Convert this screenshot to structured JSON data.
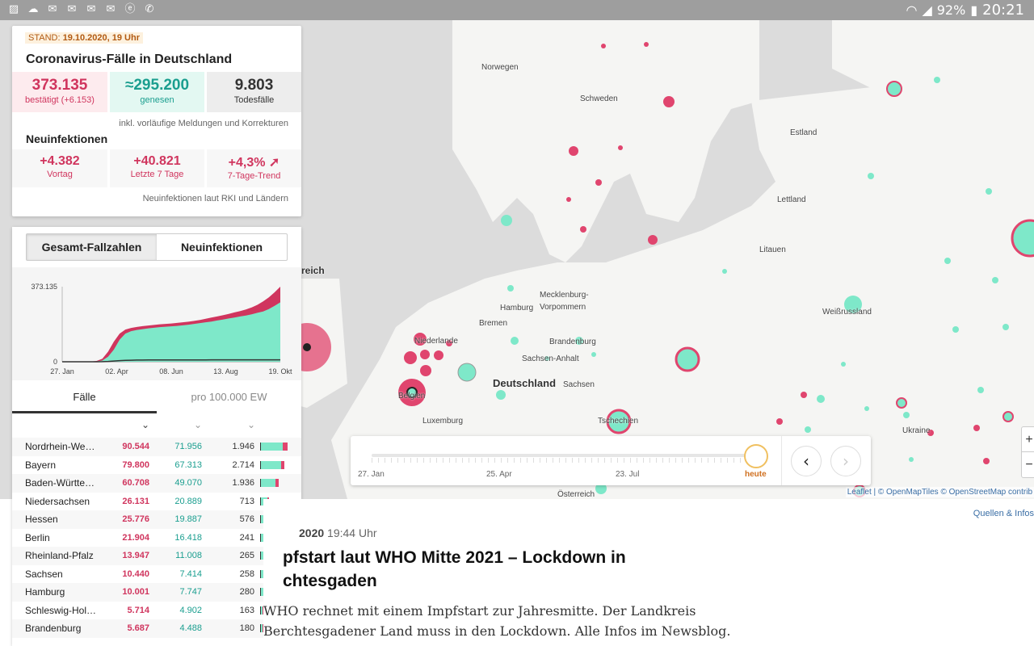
{
  "statusbar": {
    "left_icons": [
      "image-icon",
      "cloud-icon",
      "mail-icon",
      "mail-icon",
      "mail-icon",
      "mail-icon",
      "e-icon",
      "phone-icon"
    ],
    "battery": "92%",
    "time": "20:21"
  },
  "map": {
    "labels": [
      {
        "text": "Norwegen"
      },
      {
        "text": "Schweden"
      },
      {
        "text": "Estland"
      },
      {
        "text": "Lettland"
      },
      {
        "text": "Litauen"
      },
      {
        "text": "Weißrussland"
      },
      {
        "text": "Mecklenburg-"
      },
      {
        "text": "Vorpommern"
      },
      {
        "text": "Hamburg"
      },
      {
        "text": "Bremen"
      },
      {
        "text": "Brandenburg"
      },
      {
        "text": "Sachsen-Anhalt"
      },
      {
        "text": "Deutschland"
      },
      {
        "text": "Sachsen"
      },
      {
        "text": "Niederlande"
      },
      {
        "text": "Belgien"
      },
      {
        "text": "Luxemburg"
      },
      {
        "text": "Tschechien"
      },
      {
        "text": "Ukraine"
      },
      {
        "text": "Österreich"
      },
      {
        "text": "reich"
      }
    ],
    "attribution": "Leaflet | © OpenMapTiles © OpenStreetMap contrib",
    "zoom_in": "+",
    "zoom_out": "−"
  },
  "timeline": {
    "labels": [
      "27. Jan",
      "25. Apr",
      "23. Jul",
      "heute"
    ],
    "prev": "‹",
    "next": "›"
  },
  "summary": {
    "stand_prefix": "STAND:",
    "stand_date": "19.10.2020, 19 Uhr",
    "title": "Coronavirus-Fälle in Deutschland",
    "confirmed": "373.135",
    "confirmed_label": "bestätigt (+6.153)",
    "recovered": "≈295.200",
    "recovered_label": "genesen",
    "deaths": "9.803",
    "deaths_label": "Todesfälle",
    "note": "inkl. vorläufige Meldungen und Korrekturen",
    "new_title": "Neuinfektionen",
    "new_prev": "+4.382",
    "new_prev_label": "Vortag",
    "new_7d": "+40.821",
    "new_7d_label": "Letzte 7 Tage",
    "trend": "+4,3% ➚",
    "trend_label": "7-Tage-Trend",
    "new_note": "Neuinfektionen laut RKI und Ländern"
  },
  "panel": {
    "seg_total": "Gesamt-Fallzahlen",
    "seg_new": "Neuinfektionen",
    "tab_cases": "Fälle",
    "tab_per100k": "pro 100.000 EW",
    "sort_icon": "⌄"
  },
  "chart_data": {
    "type": "area",
    "title": "",
    "xlabel": "",
    "ylabel": "",
    "x_ticks": [
      "27. Jan",
      "02. Apr",
      "08. Jun",
      "13. Aug",
      "19. Okt"
    ],
    "y_ticks": [
      "0",
      "373.135"
    ],
    "ylim": [
      0,
      373135
    ],
    "x": [
      0,
      1,
      2,
      3,
      4,
      5,
      6,
      7,
      8,
      9,
      10,
      11,
      12,
      13,
      14,
      15,
      16,
      17,
      18,
      19,
      20,
      21,
      22,
      23,
      24,
      25,
      26,
      27,
      28,
      29,
      30,
      31,
      32,
      33,
      34,
      35,
      36,
      37,
      38
    ],
    "series": [
      {
        "color": "#d0355e",
        "values": [
          0,
          0,
          0,
          0,
          0,
          1000,
          4000,
          15000,
          50000,
          100000,
          140000,
          160000,
          168000,
          173000,
          177000,
          180000,
          183000,
          186000,
          188000,
          190000,
          193000,
          196000,
          199000,
          203000,
          208000,
          214000,
          220000,
          225000,
          231000,
          238000,
          245000,
          252000,
          260000,
          270000,
          283000,
          300000,
          320000,
          345000,
          373135
        ]
      },
      {
        "color": "#7ee8c9",
        "values": [
          0,
          0,
          0,
          0,
          0,
          300,
          1500,
          6000,
          25000,
          60000,
          110000,
          140000,
          152000,
          158000,
          162000,
          166000,
          169000,
          172000,
          174000,
          176000,
          178000,
          181000,
          184000,
          188000,
          192000,
          196000,
          200000,
          205000,
          210000,
          215000,
          220000,
          225000,
          230000,
          236000,
          243000,
          250000,
          262000,
          278000,
          295200
        ]
      },
      {
        "color": "#333333",
        "values": [
          0,
          0,
          0,
          0,
          0,
          30,
          100,
          400,
          1500,
          3500,
          5500,
          7000,
          7800,
          8300,
          8600,
          8800,
          8900,
          9000,
          9050,
          9100,
          9150,
          9200,
          9250,
          9300,
          9350,
          9400,
          9450,
          9500,
          9520,
          9550,
          9580,
          9600,
          9630,
          9660,
          9690,
          9720,
          9750,
          9780,
          9803
        ]
      }
    ]
  },
  "table": {
    "rows": [
      {
        "name": "Nordrhein-We…",
        "cases": "90.544",
        "recovered": "71.956",
        "deaths": "1.946",
        "frac_g": 0.79,
        "frac_p": 0.19,
        "frac_total": 1.0
      },
      {
        "name": "Bayern",
        "cases": "79.800",
        "recovered": "67.313",
        "deaths": "2.714",
        "frac_g": 0.84,
        "frac_p": 0.12,
        "frac_total": 0.88
      },
      {
        "name": "Baden-Württe…",
        "cases": "60.708",
        "recovered": "49.070",
        "deaths": "1.936",
        "frac_g": 0.81,
        "frac_p": 0.16,
        "frac_total": 0.67
      },
      {
        "name": "Niedersachsen",
        "cases": "26.131",
        "recovered": "20.889",
        "deaths": "713",
        "frac_g": 0.8,
        "frac_p": 0.17,
        "frac_total": 0.29
      },
      {
        "name": "Hessen",
        "cases": "25.776",
        "recovered": "19.887",
        "deaths": "576",
        "frac_g": 0.77,
        "frac_p": 0.21,
        "frac_total": 0.28
      },
      {
        "name": "Berlin",
        "cases": "21.904",
        "recovered": "16.418",
        "deaths": "241",
        "frac_g": 0.75,
        "frac_p": 0.24,
        "frac_total": 0.24
      },
      {
        "name": "Rheinland-Pfalz",
        "cases": "13.947",
        "recovered": "11.008",
        "deaths": "265",
        "frac_g": 0.79,
        "frac_p": 0.19,
        "frac_total": 0.15
      },
      {
        "name": "Sachsen",
        "cases": "10.440",
        "recovered": "7.414",
        "deaths": "258",
        "frac_g": 0.71,
        "frac_p": 0.27,
        "frac_total": 0.12
      },
      {
        "name": "Hamburg",
        "cases": "10.001",
        "recovered": "7.747",
        "deaths": "280",
        "frac_g": 0.77,
        "frac_p": 0.2,
        "frac_total": 0.11
      },
      {
        "name": "Schleswig-Hol…",
        "cases": "5.714",
        "recovered": "4.902",
        "deaths": "163",
        "frac_g": 0.86,
        "frac_p": 0.11,
        "frac_total": 0.06
      },
      {
        "name": "Brandenburg",
        "cases": "5.687",
        "recovered": "4.488",
        "deaths": "180",
        "frac_g": 0.79,
        "frac_p": 0.18,
        "frac_total": 0.06
      }
    ]
  },
  "article": {
    "sources_link": "Quellen & Infos",
    "date_bold": "2020",
    "date_time": "19:44 Uhr",
    "headline": "pfstart laut WHO Mitte 2021 – Lockdown in chtesgaden",
    "teaser": "WHO rechnet mit einem Impfstart zur Jahresmitte. Der Landkreis Berchtesgadener Land muss in den Lockdown. Alle Infos im Newsblog."
  }
}
